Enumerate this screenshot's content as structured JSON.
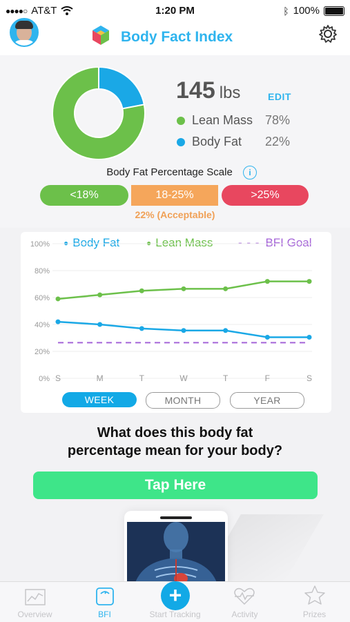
{
  "status_bar": {
    "carrier": "AT&T",
    "time": "1:20 PM",
    "battery": "100%"
  },
  "header": {
    "title": "Body Fact Index"
  },
  "summary": {
    "weight_value": "145",
    "weight_unit": "lbs",
    "edit_label": "EDIT",
    "lean_mass_label": "Lean Mass",
    "lean_mass_pct": "78%",
    "body_fat_label": "Body Fat",
    "body_fat_pct": "22%",
    "lean_fraction": 0.78,
    "fat_fraction": 0.22
  },
  "scale": {
    "title": "Body Fat Percentage Scale",
    "segments": [
      {
        "label": "<18%",
        "color": "#6cc04a"
      },
      {
        "label": "18-25%",
        "color": "#f5a65b"
      },
      {
        "label": ">25%",
        "color": "#e8475f"
      }
    ],
    "note": "22% (Acceptable)"
  },
  "chart_data": {
    "type": "line",
    "categories": [
      "S",
      "M",
      "T",
      "W",
      "T",
      "F",
      "S"
    ],
    "y_ticks": [
      "100%",
      "80%",
      "60%",
      "40%",
      "20%",
      "0%"
    ],
    "ylim": [
      0,
      100
    ],
    "grid": true,
    "legend_position": "top",
    "series": [
      {
        "name": "Body Fat",
        "color": "#1aa8e6",
        "values": [
          42,
          40,
          37,
          35.5,
          35.5,
          30.5,
          30.5
        ]
      },
      {
        "name": "Lean Mass",
        "color": "#6cc04a",
        "values": [
          59,
          62,
          65,
          66.5,
          66.5,
          72,
          72
        ]
      },
      {
        "name": "BFI Goal",
        "color": "#a564d8",
        "style": "dashed",
        "values": [
          26.5,
          26.5,
          26.5,
          26.5,
          26.5,
          26.5,
          26.5
        ]
      }
    ]
  },
  "range_buttons": {
    "week": "WEEK",
    "month": "MONTH",
    "year": "YEAR"
  },
  "question": {
    "line1": "What does this body fat",
    "line2": "percentage mean for your body?"
  },
  "cta": {
    "label": "Tap Here"
  },
  "tabs": [
    {
      "label": "Overview",
      "icon": "chart-icon"
    },
    {
      "label": "BFI",
      "icon": "scale-icon"
    },
    {
      "label": "Start Tracking",
      "icon": "plus-icon"
    },
    {
      "label": "Activity",
      "icon": "heart-pulse-icon"
    },
    {
      "label": "Prizes",
      "icon": "star-icon"
    }
  ],
  "colors": {
    "accent": "#2fb4ee",
    "green": "#6cc04a",
    "cta": "#3ee589"
  }
}
